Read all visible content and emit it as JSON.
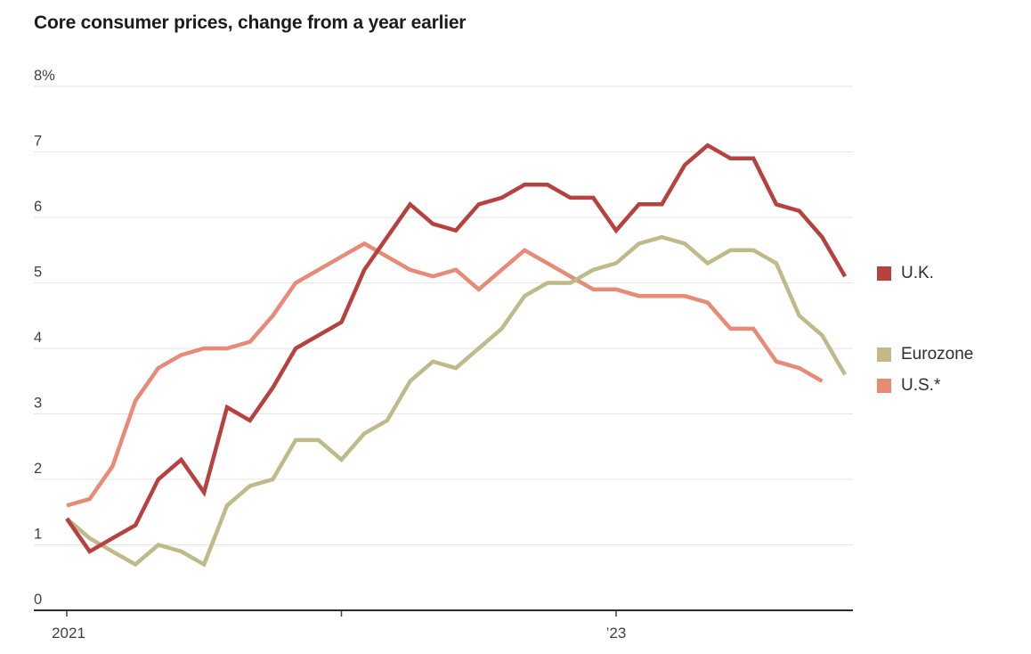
{
  "title": "Core consumer prices, change from a year earlier",
  "legend": {
    "items": [
      {
        "label": "U.K.",
        "color": "#b6413e"
      },
      {
        "label": "Eurozone",
        "color": "#bfba8a"
      },
      {
        "label": "U.S.*",
        "color": "#e78a76"
      }
    ]
  },
  "chart_data": {
    "type": "line",
    "title": "Core consumer prices, change from a year earlier",
    "x_unit": "month",
    "x_months": [
      "2021-01",
      "2021-02",
      "2021-03",
      "2021-04",
      "2021-05",
      "2021-06",
      "2021-07",
      "2021-08",
      "2021-09",
      "2021-10",
      "2021-11",
      "2021-12",
      "2022-01",
      "2022-02",
      "2022-03",
      "2022-04",
      "2022-05",
      "2022-06",
      "2022-07",
      "2022-08",
      "2022-09",
      "2022-10",
      "2022-11",
      "2022-12",
      "2023-01",
      "2023-02",
      "2023-03",
      "2023-04",
      "2023-05",
      "2023-06",
      "2023-07",
      "2023-08",
      "2023-09",
      "2023-10",
      "2023-11"
    ],
    "x_tick_labels": [
      "2021",
      "’23"
    ],
    "x_tick_month_indices": [
      0,
      24
    ],
    "x_tick_marks_month_indices": [
      0,
      12,
      24
    ],
    "ylim": [
      0,
      8
    ],
    "yticks": [
      0,
      1,
      2,
      3,
      4,
      5,
      6,
      7,
      8
    ],
    "ytick_top_label": "8%",
    "grid": true,
    "legend_position": "right",
    "series": [
      {
        "name": "U.K.",
        "color": "#b6413e",
        "last_month": "2023-11",
        "values": [
          1.4,
          0.9,
          1.1,
          1.3,
          2.0,
          2.3,
          1.8,
          3.1,
          2.9,
          3.4,
          4.0,
          4.2,
          4.4,
          5.2,
          5.7,
          6.2,
          5.9,
          5.8,
          6.2,
          6.3,
          6.5,
          6.5,
          6.3,
          6.3,
          5.8,
          6.2,
          6.2,
          6.8,
          7.1,
          6.9,
          6.9,
          6.2,
          6.1,
          5.7,
          5.1
        ]
      },
      {
        "name": "Eurozone",
        "color": "#bfba8a",
        "last_month": "2023-11",
        "values": [
          1.4,
          1.1,
          0.9,
          0.7,
          1.0,
          0.9,
          0.7,
          1.6,
          1.9,
          2.0,
          2.6,
          2.6,
          2.3,
          2.7,
          2.9,
          3.5,
          3.8,
          3.7,
          4.0,
          4.3,
          4.8,
          5.0,
          5.0,
          5.2,
          5.3,
          5.6,
          5.7,
          5.6,
          5.3,
          5.5,
          5.5,
          5.3,
          4.5,
          4.2,
          3.6
        ]
      },
      {
        "name": "U.S.*",
        "color": "#e78a76",
        "last_month": "2023-10",
        "values": [
          1.6,
          1.7,
          2.2,
          3.2,
          3.7,
          3.9,
          4.0,
          4.0,
          4.1,
          4.5,
          5.0,
          5.2,
          5.4,
          5.6,
          5.4,
          5.2,
          5.1,
          5.2,
          4.9,
          5.2,
          5.5,
          5.3,
          5.1,
          4.9,
          4.9,
          4.8,
          4.8,
          4.8,
          4.7,
          4.3,
          4.3,
          3.8,
          3.7,
          3.5
        ]
      }
    ]
  }
}
